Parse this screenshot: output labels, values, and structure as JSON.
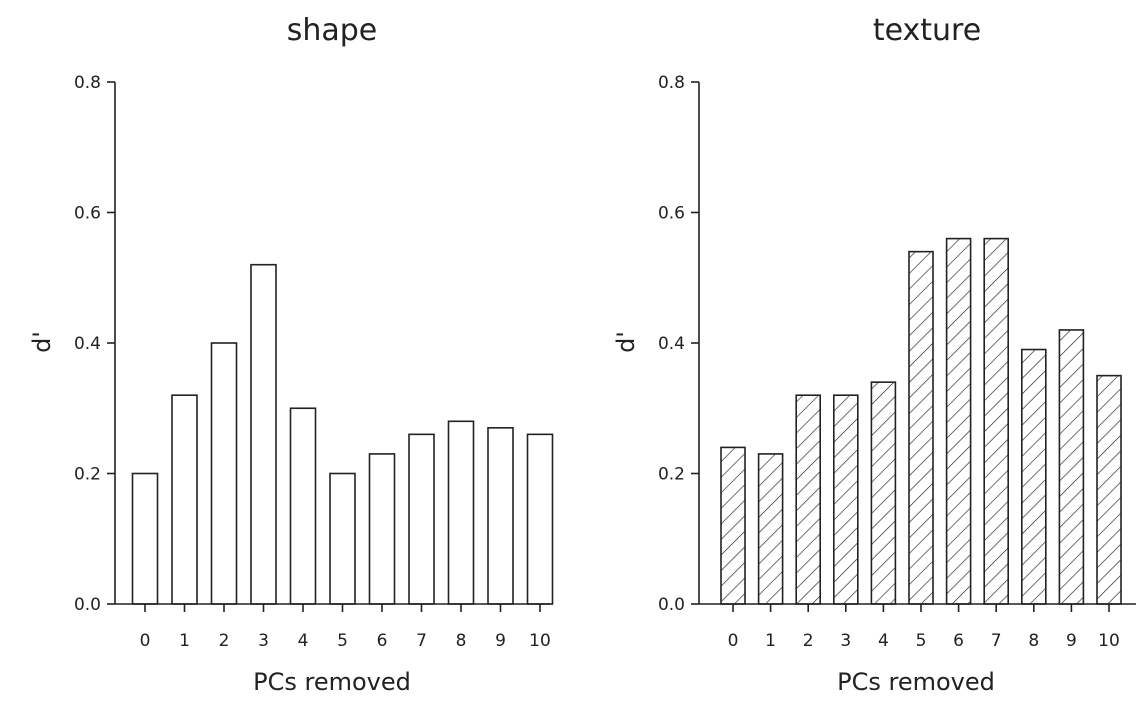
{
  "chart_data": [
    {
      "type": "bar",
      "title": "shape",
      "xlabel": "PCs removed",
      "ylabel": "d'",
      "categories": [
        "0",
        "1",
        "2",
        "3",
        "4",
        "5",
        "6",
        "7",
        "8",
        "9",
        "10"
      ],
      "values": [
        0.2,
        0.32,
        0.4,
        0.52,
        0.3,
        0.2,
        0.23,
        0.26,
        0.28,
        0.27,
        0.26
      ],
      "ylim": [
        0,
        0.8
      ],
      "yticks": [
        "0.0",
        "0.2",
        "0.4",
        "0.6",
        "0.8"
      ],
      "fill": "white",
      "grid": false
    },
    {
      "type": "bar",
      "title": "texture",
      "xlabel": "PCs removed",
      "ylabel": "d'",
      "categories": [
        "0",
        "1",
        "2",
        "3",
        "4",
        "5",
        "6",
        "7",
        "8",
        "9",
        "10"
      ],
      "values": [
        0.24,
        0.23,
        0.32,
        0.32,
        0.34,
        0.54,
        0.56,
        0.56,
        0.39,
        0.42,
        0.35
      ],
      "ylim": [
        0,
        0.8
      ],
      "yticks": [
        "0.0",
        "0.2",
        "0.4",
        "0.6",
        "0.8"
      ],
      "fill": "diagonal-hatch",
      "grid": false
    }
  ]
}
